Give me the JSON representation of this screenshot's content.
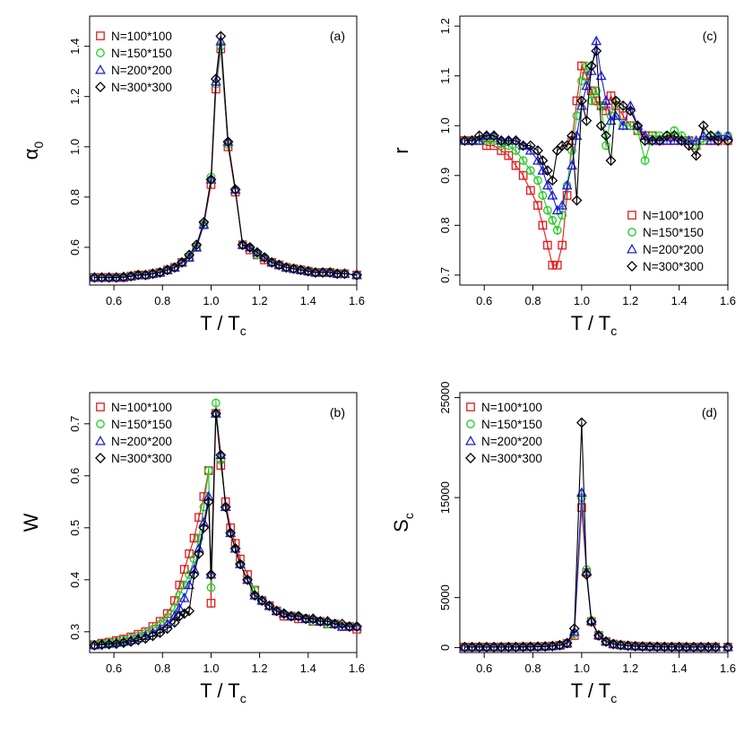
{
  "chart_data": [
    {
      "id": "a",
      "type": "line",
      "panel_label": "(a)",
      "xlabel": "T / T",
      "xlabel_sub": "c",
      "ylabel": "α",
      "ylabel_sub": "0",
      "xlim": [
        0.5,
        1.6
      ],
      "ylim": [
        0.45,
        1.52
      ],
      "xticks": [
        "0.6",
        "0.8",
        "1.0",
        "1.2",
        "1.4",
        "1.6"
      ],
      "yticks": [
        "0.6",
        "0.8",
        "1.0",
        "1.2",
        "1.4"
      ],
      "legend_position": "top-left",
      "x": [
        0.52,
        0.55,
        0.58,
        0.61,
        0.64,
        0.67,
        0.7,
        0.73,
        0.76,
        0.79,
        0.82,
        0.85,
        0.88,
        0.91,
        0.94,
        0.97,
        1.0,
        1.02,
        1.04,
        1.07,
        1.1,
        1.13,
        1.16,
        1.19,
        1.22,
        1.25,
        1.28,
        1.31,
        1.34,
        1.37,
        1.4,
        1.43,
        1.46,
        1.49,
        1.52,
        1.55,
        1.6
      ],
      "series": [
        {
          "name": "N=100*100",
          "color": "#e41a1c",
          "marker": "square",
          "values": [
            0.48,
            0.48,
            0.48,
            0.48,
            0.48,
            0.485,
            0.49,
            0.49,
            0.495,
            0.5,
            0.51,
            0.52,
            0.54,
            0.56,
            0.6,
            0.69,
            0.85,
            1.23,
            1.39,
            1.0,
            0.82,
            0.61,
            0.59,
            0.57,
            0.55,
            0.54,
            0.53,
            0.52,
            0.515,
            0.51,
            0.505,
            0.5,
            0.5,
            0.5,
            0.495,
            0.495,
            0.49
          ]
        },
        {
          "name": "N=150*150",
          "color": "#22cc22",
          "marker": "circle",
          "values": [
            0.48,
            0.48,
            0.48,
            0.48,
            0.482,
            0.485,
            0.49,
            0.49,
            0.495,
            0.5,
            0.51,
            0.52,
            0.54,
            0.56,
            0.6,
            0.69,
            0.88,
            1.25,
            1.4,
            1.01,
            0.83,
            0.61,
            0.6,
            0.57,
            0.56,
            0.54,
            0.53,
            0.52,
            0.515,
            0.51,
            0.505,
            0.5,
            0.5,
            0.5,
            0.495,
            0.495,
            0.49
          ]
        },
        {
          "name": "N=200*200",
          "color": "#1f1fd6",
          "marker": "triangle",
          "values": [
            0.48,
            0.48,
            0.48,
            0.48,
            0.482,
            0.485,
            0.49,
            0.49,
            0.495,
            0.5,
            0.51,
            0.52,
            0.54,
            0.56,
            0.6,
            0.69,
            0.87,
            1.26,
            1.42,
            1.02,
            0.83,
            0.61,
            0.6,
            0.58,
            0.56,
            0.54,
            0.53,
            0.52,
            0.515,
            0.51,
            0.505,
            0.5,
            0.5,
            0.5,
            0.495,
            0.495,
            0.49
          ]
        },
        {
          "name": "N=300*300",
          "color": "#000000",
          "marker": "diamond",
          "values": [
            0.48,
            0.48,
            0.48,
            0.48,
            0.482,
            0.485,
            0.49,
            0.49,
            0.495,
            0.5,
            0.51,
            0.52,
            0.54,
            0.57,
            0.61,
            0.7,
            0.87,
            1.27,
            1.44,
            1.02,
            0.83,
            0.61,
            0.6,
            0.58,
            0.56,
            0.54,
            0.53,
            0.52,
            0.515,
            0.51,
            0.505,
            0.5,
            0.5,
            0.5,
            0.495,
            0.495,
            0.49
          ]
        }
      ]
    },
    {
      "id": "c",
      "type": "line",
      "panel_label": "(c)",
      "xlabel": "T / T",
      "xlabel_sub": "c",
      "ylabel": "r",
      "ylabel_sub": "",
      "xlim": [
        0.5,
        1.6
      ],
      "ylim": [
        0.68,
        1.22
      ],
      "xticks": [
        "0.6",
        "0.8",
        "1.0",
        "1.2",
        "1.4",
        "1.6"
      ],
      "yticks": [
        "0.7",
        "0.8",
        "0.9",
        "1.0",
        "1.1",
        "1.2"
      ],
      "legend_position": "bottom-right",
      "x": [
        0.52,
        0.55,
        0.58,
        0.61,
        0.64,
        0.67,
        0.7,
        0.73,
        0.76,
        0.79,
        0.82,
        0.84,
        0.86,
        0.88,
        0.9,
        0.92,
        0.94,
        0.96,
        0.98,
        1.0,
        1.02,
        1.04,
        1.06,
        1.08,
        1.1,
        1.12,
        1.14,
        1.17,
        1.2,
        1.23,
        1.26,
        1.29,
        1.32,
        1.35,
        1.38,
        1.41,
        1.44,
        1.47,
        1.5,
        1.53,
        1.56,
        1.6
      ],
      "series": [
        {
          "name": "N=100*100",
          "color": "#e41a1c",
          "marker": "square",
          "values": [
            0.97,
            0.97,
            0.97,
            0.96,
            0.96,
            0.95,
            0.94,
            0.92,
            0.9,
            0.87,
            0.84,
            0.8,
            0.76,
            0.72,
            0.72,
            0.76,
            0.86,
            0.97,
            1.05,
            1.12,
            1.1,
            1.07,
            1.05,
            1.04,
            1.03,
            1.06,
            1.04,
            1.02,
            1.0,
            0.99,
            0.98,
            0.98,
            0.97,
            0.97,
            0.97,
            0.97,
            0.97,
            0.96,
            0.97,
            0.97,
            0.97,
            0.97
          ]
        },
        {
          "name": "N=150*150",
          "color": "#22cc22",
          "marker": "circle",
          "values": [
            0.97,
            0.97,
            0.97,
            0.97,
            0.97,
            0.96,
            0.96,
            0.95,
            0.93,
            0.91,
            0.89,
            0.86,
            0.83,
            0.81,
            0.79,
            0.82,
            0.88,
            0.95,
            1.02,
            1.09,
            1.12,
            1.05,
            1.07,
            1.04,
            0.96,
            1.02,
            1.05,
            1.0,
            1.0,
            0.99,
            0.93,
            0.98,
            0.98,
            0.98,
            0.99,
            0.98,
            0.97,
            0.96,
            0.97,
            0.98,
            0.98,
            0.98
          ]
        },
        {
          "name": "N=200*200",
          "color": "#1f1fd6",
          "marker": "triangle",
          "values": [
            0.97,
            0.97,
            0.97,
            0.98,
            0.98,
            0.97,
            0.97,
            0.97,
            0.96,
            0.95,
            0.93,
            0.91,
            0.88,
            0.86,
            0.83,
            0.84,
            0.88,
            0.92,
            0.98,
            1.04,
            1.08,
            1.11,
            1.17,
            1.1,
            1.05,
            1.01,
            1.02,
            1.0,
            1.04,
            1.0,
            0.98,
            0.97,
            0.97,
            0.97,
            0.97,
            0.97,
            0.97,
            0.97,
            0.98,
            0.97,
            0.98,
            0.98
          ]
        },
        {
          "name": "N=300*300",
          "color": "#000000",
          "marker": "diamond",
          "values": [
            0.97,
            0.97,
            0.98,
            0.98,
            0.98,
            0.97,
            0.97,
            0.97,
            0.96,
            0.96,
            0.95,
            0.93,
            0.91,
            0.89,
            0.95,
            0.96,
            0.96,
            0.98,
            0.85,
            1.05,
            1.01,
            1.12,
            1.15,
            1.0,
            0.98,
            0.93,
            1.05,
            1.04,
            1.03,
            1.0,
            0.97,
            0.97,
            0.97,
            0.98,
            0.98,
            0.97,
            0.96,
            0.94,
            1.0,
            0.98,
            0.97,
            0.97
          ]
        }
      ]
    },
    {
      "id": "b",
      "type": "line",
      "panel_label": "(b)",
      "xlabel": "T / T",
      "xlabel_sub": "c",
      "ylabel": "W",
      "ylabel_sub": "",
      "xlim": [
        0.5,
        1.6
      ],
      "ylim": [
        0.26,
        0.76
      ],
      "xticks": [
        "0.6",
        "0.8",
        "1.0",
        "1.2",
        "1.4",
        "1.6"
      ],
      "yticks": [
        "0.3",
        "0.4",
        "0.5",
        "0.6",
        "0.7"
      ],
      "legend_position": "top-left",
      "x": [
        0.52,
        0.55,
        0.58,
        0.61,
        0.64,
        0.67,
        0.7,
        0.73,
        0.76,
        0.79,
        0.82,
        0.85,
        0.87,
        0.89,
        0.91,
        0.93,
        0.95,
        0.97,
        0.99,
        1.0,
        1.02,
        1.04,
        1.06,
        1.08,
        1.1,
        1.12,
        1.15,
        1.18,
        1.21,
        1.24,
        1.27,
        1.3,
        1.33,
        1.36,
        1.39,
        1.42,
        1.45,
        1.48,
        1.51,
        1.54,
        1.57,
        1.6
      ],
      "series": [
        {
          "name": "N=100*100",
          "color": "#e41a1c",
          "marker": "square",
          "values": [
            0.275,
            0.278,
            0.28,
            0.283,
            0.286,
            0.29,
            0.295,
            0.3,
            0.31,
            0.32,
            0.335,
            0.36,
            0.39,
            0.42,
            0.45,
            0.48,
            0.52,
            0.56,
            0.61,
            0.355,
            0.72,
            0.62,
            0.55,
            0.5,
            0.47,
            0.44,
            0.41,
            0.38,
            0.36,
            0.35,
            0.34,
            0.33,
            0.33,
            0.325,
            0.325,
            0.32,
            0.32,
            0.315,
            0.315,
            0.31,
            0.31,
            0.305
          ]
        },
        {
          "name": "N=150*150",
          "color": "#22cc22",
          "marker": "circle",
          "values": [
            0.275,
            0.277,
            0.279,
            0.281,
            0.284,
            0.288,
            0.292,
            0.297,
            0.305,
            0.315,
            0.328,
            0.345,
            0.37,
            0.39,
            0.41,
            0.44,
            0.48,
            0.54,
            0.61,
            0.385,
            0.74,
            0.63,
            0.54,
            0.49,
            0.46,
            0.43,
            0.4,
            0.38,
            0.36,
            0.35,
            0.34,
            0.335,
            0.33,
            0.33,
            0.325,
            0.32,
            0.32,
            0.315,
            0.315,
            0.31,
            0.31,
            0.31
          ]
        },
        {
          "name": "N=200*200",
          "color": "#1f1fd6",
          "marker": "triangle",
          "values": [
            0.274,
            0.276,
            0.277,
            0.279,
            0.281,
            0.284,
            0.288,
            0.292,
            0.298,
            0.305,
            0.315,
            0.33,
            0.345,
            0.365,
            0.39,
            0.42,
            0.46,
            0.51,
            0.56,
            0.41,
            0.72,
            0.64,
            0.54,
            0.49,
            0.46,
            0.43,
            0.4,
            0.37,
            0.36,
            0.35,
            0.34,
            0.335,
            0.33,
            0.33,
            0.325,
            0.325,
            0.32,
            0.32,
            0.315,
            0.31,
            0.31,
            0.31
          ]
        },
        {
          "name": "N=300*300",
          "color": "#000000",
          "marker": "diamond",
          "values": [
            0.274,
            0.275,
            0.276,
            0.277,
            0.279,
            0.281,
            0.284,
            0.287,
            0.292,
            0.298,
            0.306,
            0.318,
            0.33,
            0.335,
            0.34,
            0.41,
            0.45,
            0.5,
            0.55,
            0.41,
            0.72,
            0.64,
            0.54,
            0.49,
            0.46,
            0.43,
            0.4,
            0.37,
            0.36,
            0.35,
            0.34,
            0.335,
            0.33,
            0.33,
            0.325,
            0.325,
            0.32,
            0.32,
            0.315,
            0.315,
            0.31,
            0.31
          ]
        }
      ]
    },
    {
      "id": "d",
      "type": "line",
      "panel_label": "(d)",
      "xlabel": "T / T",
      "xlabel_sub": "c",
      "ylabel": "S",
      "ylabel_sub": "c",
      "xlim": [
        0.5,
        1.6
      ],
      "ylim": [
        -500,
        25500
      ],
      "xticks": [
        "0.6",
        "0.8",
        "1.0",
        "1.2",
        "1.4",
        "1.6"
      ],
      "yticks_values": [
        0,
        5000,
        15000,
        25000
      ],
      "yticks": [
        "0",
        "5000",
        "15000",
        "25000"
      ],
      "legend_position": "top-left",
      "x": [
        0.52,
        0.55,
        0.58,
        0.61,
        0.64,
        0.67,
        0.7,
        0.73,
        0.76,
        0.79,
        0.82,
        0.85,
        0.88,
        0.91,
        0.94,
        0.97,
        1.0,
        1.02,
        1.04,
        1.07,
        1.1,
        1.13,
        1.16,
        1.19,
        1.22,
        1.25,
        1.28,
        1.31,
        1.34,
        1.37,
        1.4,
        1.43,
        1.46,
        1.49,
        1.52,
        1.55,
        1.6
      ],
      "series": [
        {
          "name": "N=100*100",
          "color": "#e41a1c",
          "marker": "square",
          "values": [
            50,
            50,
            50,
            50,
            50,
            50,
            60,
            60,
            70,
            80,
            90,
            110,
            150,
            220,
            400,
            1200,
            14000,
            7500,
            2600,
            1200,
            600,
            350,
            250,
            180,
            140,
            110,
            90,
            80,
            70,
            60,
            60,
            50,
            50,
            50,
            50,
            50,
            50
          ]
        },
        {
          "name": "N=150*150",
          "color": "#22cc22",
          "marker": "circle",
          "values": [
            50,
            50,
            50,
            50,
            50,
            50,
            60,
            60,
            70,
            80,
            90,
            110,
            150,
            230,
            420,
            1400,
            15000,
            7800,
            2700,
            1250,
            620,
            360,
            250,
            180,
            140,
            110,
            90,
            80,
            70,
            60,
            60,
            50,
            50,
            50,
            50,
            50,
            50
          ]
        },
        {
          "name": "N=200*200",
          "color": "#1f1fd6",
          "marker": "triangle",
          "values": [
            50,
            50,
            50,
            50,
            50,
            50,
            60,
            60,
            70,
            80,
            90,
            110,
            150,
            230,
            430,
            1600,
            15500,
            7600,
            2700,
            1250,
            620,
            360,
            250,
            180,
            140,
            110,
            90,
            80,
            70,
            60,
            60,
            50,
            50,
            50,
            50,
            50,
            50
          ]
        },
        {
          "name": "N=300*300",
          "color": "#000000",
          "marker": "diamond",
          "values": [
            50,
            50,
            50,
            50,
            50,
            50,
            60,
            60,
            70,
            80,
            90,
            110,
            150,
            240,
            450,
            1900,
            22500,
            7300,
            2600,
            1200,
            600,
            350,
            250,
            180,
            140,
            110,
            90,
            80,
            70,
            60,
            60,
            50,
            50,
            50,
            50,
            50,
            50
          ]
        }
      ]
    }
  ]
}
